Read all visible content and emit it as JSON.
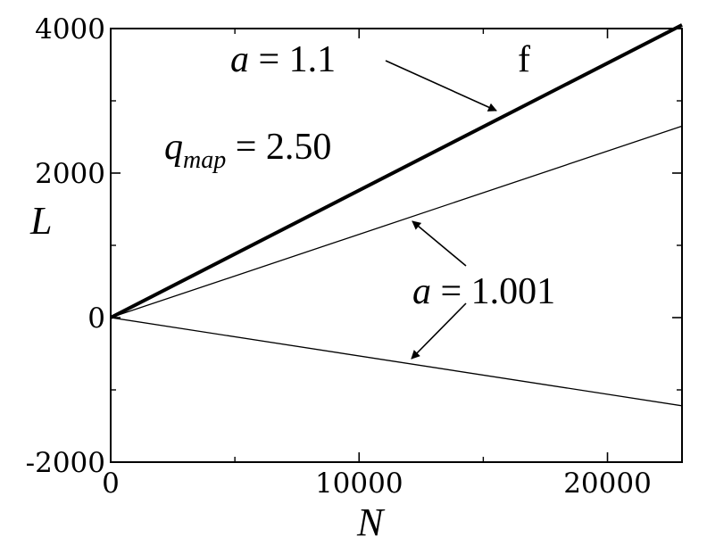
{
  "chart_data": {
    "type": "line",
    "xlabel": "N",
    "ylabel": "L",
    "xlim": [
      0,
      23000
    ],
    "ylim": [
      -2000,
      4000
    ],
    "x_ticks": [
      0,
      10000,
      20000
    ],
    "x_minor_ticks": [
      5000,
      15000
    ],
    "y_ticks": [
      -2000,
      0,
      2000,
      4000
    ],
    "y_minor_ticks": [
      -1000,
      1000,
      3000
    ],
    "x_tick_labels": [
      "0",
      "10000",
      "20000"
    ],
    "y_tick_labels": [
      "-2000",
      "0",
      "2000",
      "4000"
    ],
    "grid": false,
    "series": [
      {
        "x": [
          0,
          23000
        ],
        "y": [
          0,
          4050
        ],
        "weight": "thick"
      },
      {
        "x": [
          0,
          23000
        ],
        "y": [
          0,
          2650
        ],
        "weight": "thin"
      },
      {
        "x": [
          0,
          23000
        ],
        "y": [
          0,
          -1220
        ],
        "weight": "thin"
      }
    ],
    "annotations": [
      {
        "text": "a = 1.1",
        "parts": [
          "a",
          " = 1.1"
        ]
      },
      {
        "text": "q_map = 2.50",
        "parts": [
          "q",
          "map",
          " = 2.50"
        ]
      },
      {
        "text": "a = 1.001",
        "parts": [
          "a",
          " = 1.001"
        ]
      }
    ],
    "panel_label": "f"
  }
}
